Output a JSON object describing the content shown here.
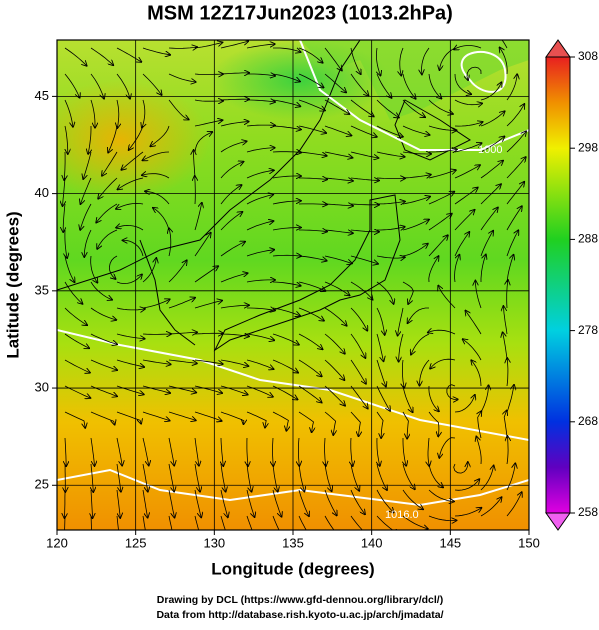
{
  "title": "MSM 12Z17Jun2023 (1013.2hPa)",
  "x_axis": {
    "label": "Longitude (degrees)",
    "lim": [
      120,
      150
    ],
    "ticks": [
      120,
      125,
      130,
      135,
      140,
      145,
      150
    ]
  },
  "y_axis": {
    "label": "Latitude  (degrees)",
    "lim": [
      22.7,
      47.9
    ],
    "ticks": [
      25,
      30,
      35,
      40,
      45
    ]
  },
  "colorbar": {
    "lim": [
      258,
      308
    ],
    "ticks": [
      258,
      268,
      278,
      288,
      298,
      308
    ]
  },
  "contour_labels": [
    "1000",
    "1016.0"
  ],
  "footer": [
    "Drawing by DCL (https://www.gfd-dennou.org/library/dcl/)",
    "Data from http://database.rish.kyoto-u.ac.jp/arch/jmadata/"
  ]
}
